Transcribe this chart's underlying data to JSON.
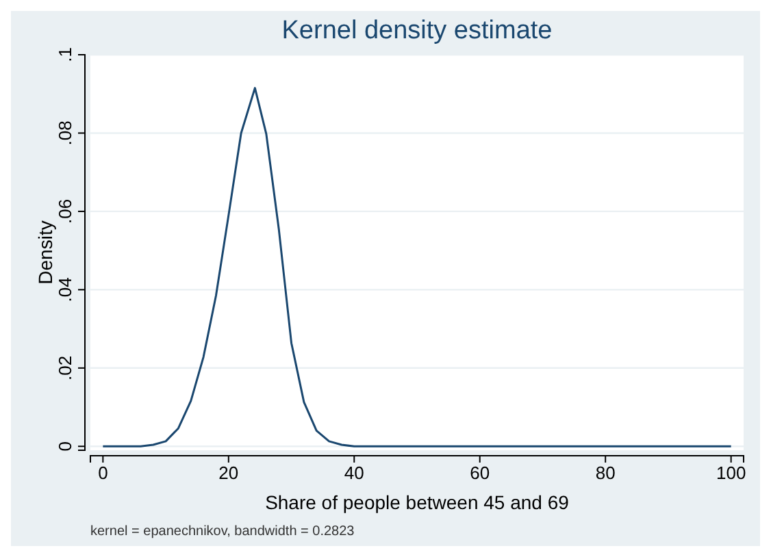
{
  "chart_data": {
    "type": "line",
    "title": "Kernel density estimate",
    "xlabel": "Share of people between 45 and 69",
    "ylabel": "Density",
    "annotations": [
      "kernel = epanechnikov, bandwidth = 0.2823"
    ],
    "x": [
      0,
      6,
      8,
      10,
      12,
      14,
      16,
      18,
      20,
      22,
      24.2,
      26,
      28,
      30,
      32,
      34,
      36,
      38,
      40,
      100
    ],
    "series": [
      {
        "color": "#1a476f",
        "values": [
          0,
          0,
          0.0004,
          0.0013,
          0.0046,
          0.0116,
          0.0228,
          0.0385,
          0.059,
          0.08,
          0.0915,
          0.0798,
          0.0555,
          0.0264,
          0.0113,
          0.004,
          0.0013,
          0.0004,
          0,
          0
        ]
      }
    ],
    "xlim": [
      -2,
      102
    ],
    "ylim": [
      -0.001,
      0.1
    ],
    "xticks": [
      0,
      20,
      40,
      60,
      80,
      100
    ],
    "yticks": [
      {
        "value": 0,
        "label": "0"
      },
      {
        "value": 0.02,
        "label": ".02"
      },
      {
        "value": 0.04,
        "label": ".04"
      },
      {
        "value": 0.06,
        "label": ".06"
      },
      {
        "value": 0.08,
        "label": ".08"
      },
      {
        "value": 0.1,
        "label": ".1"
      }
    ],
    "grid": "y",
    "marker": "none",
    "line_style": "solid"
  }
}
